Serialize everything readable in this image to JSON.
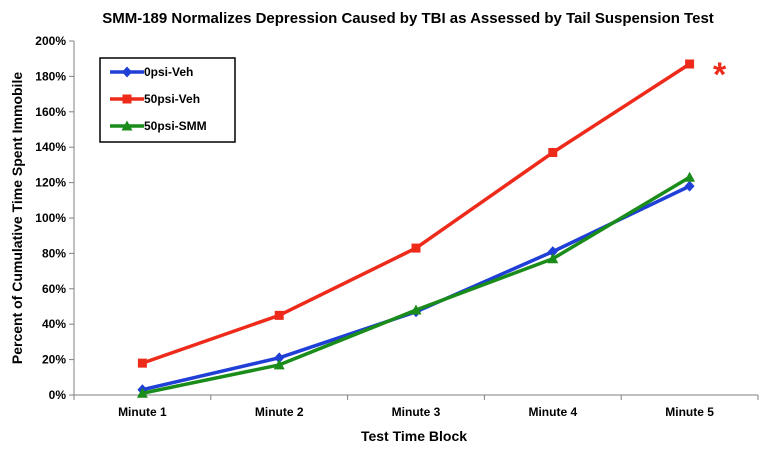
{
  "chart_data": {
    "type": "line",
    "title": "SMM-189 Normalizes Depression Caused by TBI as Assessed by Tail Suspension Test",
    "xlabel": "Test Time Block",
    "ylabel": "Percent of Cumulative Time Spent Immobile",
    "categories": [
      "Minute 1",
      "Minute 2",
      "Minute 3",
      "Minute 4",
      "Minute 5"
    ],
    "ylim": [
      0,
      200
    ],
    "yticks": [
      0,
      20,
      40,
      60,
      80,
      100,
      120,
      140,
      160,
      180,
      200
    ],
    "ytick_suffix": "%",
    "grid": false,
    "legend_position": "top-left",
    "series": [
      {
        "name": "0psi-Veh",
        "color": "#1f3fd6",
        "marker": "diamond",
        "values": [
          3,
          21,
          47,
          81,
          118
        ]
      },
      {
        "name": "50psi-Veh",
        "color": "#ee2a1a",
        "marker": "square",
        "values": [
          18,
          45,
          83,
          137,
          187
        ]
      },
      {
        "name": "50psi-SMM",
        "color": "#1a8c1a",
        "marker": "triangle",
        "values": [
          1,
          17,
          48,
          77,
          123
        ]
      }
    ],
    "annotations": [
      {
        "text": "*",
        "category": "Minute 5",
        "series": "50psi-Veh",
        "color": "#ee2a1a"
      }
    ]
  }
}
